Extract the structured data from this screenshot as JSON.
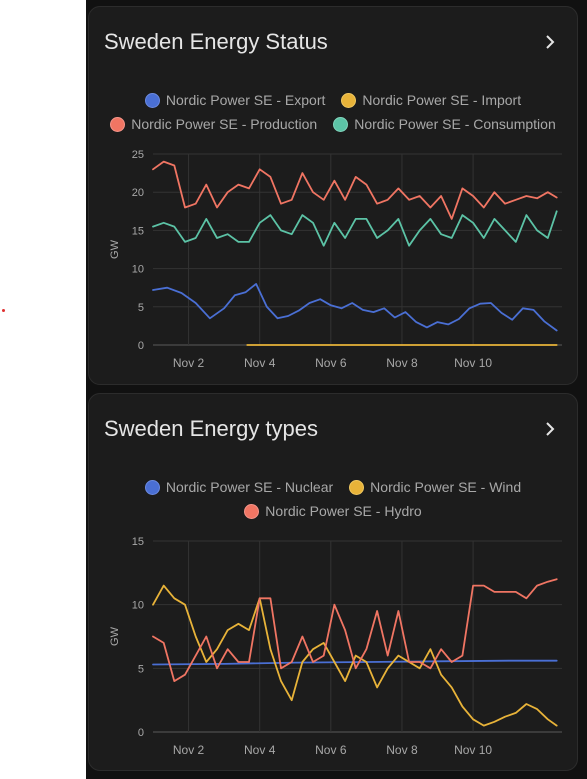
{
  "colors": {
    "blue": "#4a6fd4",
    "yellow": "#e8b339",
    "red": "#f07563",
    "teal": "#5cc3a6"
  },
  "cards": [
    {
      "title": "Sweden Energy Status",
      "chevron_icon": "chevron-right-icon",
      "legend_rows": [
        [
          {
            "label": "Nordic Power SE - Export",
            "color": "#4a6fd4"
          },
          {
            "label": "Nordic Power SE - Import",
            "color": "#e8b339"
          }
        ],
        [
          {
            "label": "Nordic Power SE - Production",
            "color": "#f07563"
          },
          {
            "label": "Nordic Power SE - Consumption",
            "color": "#5cc3a6"
          }
        ]
      ],
      "chart_data": {
        "type": "line",
        "ylabel": "GW",
        "ylim": [
          0,
          25
        ],
        "yticks": [
          "0",
          "5",
          "10",
          "15",
          "20",
          "25"
        ],
        "xlim": [
          1,
          12.5
        ],
        "xticks": [
          {
            "label": "Nov 2",
            "value": 2
          },
          {
            "label": "Nov 4",
            "value": 4
          },
          {
            "label": "Nov 6",
            "value": 6
          },
          {
            "label": "Nov 8",
            "value": 8
          },
          {
            "label": "Nov 10",
            "value": 10
          }
        ],
        "grid": true,
        "series": [
          {
            "name": "Nordic Power SE - Export",
            "color": "#4a6fd4",
            "x": [
              1,
              1.4,
              1.8,
              2.2,
              2.6,
              3.0,
              3.3,
              3.6,
              3.9,
              4.2,
              4.5,
              4.8,
              5.1,
              5.4,
              5.7,
              6.0,
              6.3,
              6.6,
              6.9,
              7.2,
              7.5,
              7.8,
              8.1,
              8.4,
              8.7,
              9.0,
              9.3,
              9.6,
              9.9,
              10.2,
              10.5,
              10.8,
              11.1,
              11.4,
              11.7,
              12.0,
              12.35
            ],
            "y": [
              7.2,
              7.5,
              6.8,
              5.5,
              3.5,
              4.8,
              6.5,
              6.9,
              8.0,
              5.0,
              3.5,
              3.8,
              4.5,
              5.5,
              6.0,
              5.2,
              4.8,
              5.5,
              4.6,
              4.3,
              4.8,
              3.6,
              4.3,
              3.0,
              2.3,
              3.0,
              2.7,
              3.4,
              4.8,
              5.4,
              5.5,
              4.2,
              3.3,
              4.8,
              4.6,
              3.1,
              1.9
            ]
          },
          {
            "name": "Nordic Power SE - Import",
            "color": "#e8b339",
            "x": [
              3.65,
              12.35
            ],
            "y": [
              0,
              0
            ]
          },
          {
            "name": "Nordic Power SE - Production",
            "color": "#f07563",
            "x": [
              1,
              1.3,
              1.6,
              1.9,
              2.2,
              2.5,
              2.8,
              3.1,
              3.4,
              3.7,
              4.0,
              4.3,
              4.6,
              4.9,
              5.2,
              5.5,
              5.8,
              6.1,
              6.4,
              6.7,
              7.0,
              7.3,
              7.6,
              7.9,
              8.2,
              8.5,
              8.8,
              9.1,
              9.4,
              9.7,
              10.0,
              10.3,
              10.6,
              10.9,
              11.2,
              11.5,
              11.8,
              12.1,
              12.35
            ],
            "y": [
              23,
              24,
              23.5,
              18,
              18.5,
              21,
              18,
              20,
              21,
              20.5,
              23,
              22,
              18.5,
              19,
              22.5,
              20,
              19,
              21.5,
              19,
              22,
              21,
              18.5,
              19,
              20.5,
              19,
              19.5,
              18,
              19.5,
              16.5,
              20.5,
              19.5,
              18,
              20,
              18.5,
              19,
              19.5,
              19.2,
              20,
              19.3
            ]
          },
          {
            "name": "Nordic Power SE - Consumption",
            "color": "#5cc3a6",
            "x": [
              1,
              1.3,
              1.6,
              1.9,
              2.2,
              2.5,
              2.8,
              3.1,
              3.4,
              3.7,
              4.0,
              4.3,
              4.6,
              4.9,
              5.2,
              5.5,
              5.8,
              6.1,
              6.4,
              6.7,
              7.0,
              7.3,
              7.6,
              7.9,
              8.2,
              8.5,
              8.8,
              9.1,
              9.4,
              9.7,
              10.0,
              10.3,
              10.6,
              10.9,
              11.2,
              11.5,
              11.8,
              12.1,
              12.35
            ],
            "y": [
              15.5,
              16,
              15.5,
              13.5,
              14,
              16.5,
              14,
              14.5,
              13.5,
              13.5,
              16,
              17,
              15,
              14.5,
              17,
              16,
              13,
              16,
              14,
              16.5,
              16.5,
              14,
              15,
              16.5,
              13,
              15,
              16.5,
              14.5,
              14,
              17,
              16,
              14,
              16.5,
              15,
              13.5,
              17,
              15,
              14,
              17.5
            ]
          }
        ]
      }
    },
    {
      "title": "Sweden Energy types",
      "chevron_icon": "chevron-right-icon",
      "legend_rows": [
        [
          {
            "label": "Nordic Power SE - Nuclear",
            "color": "#4a6fd4"
          },
          {
            "label": "Nordic Power SE - Wind",
            "color": "#e8b339"
          }
        ],
        [
          {
            "label": "Nordic Power SE - Hydro",
            "color": "#f07563"
          }
        ]
      ],
      "chart_data": {
        "type": "line",
        "ylabel": "GW",
        "ylim": [
          0,
          15
        ],
        "yticks": [
          "0",
          "5",
          "10",
          "15"
        ],
        "xlim": [
          1,
          12.5
        ],
        "xticks": [
          {
            "label": "Nov 2",
            "value": 2
          },
          {
            "label": "Nov 4",
            "value": 4
          },
          {
            "label": "Nov 6",
            "value": 6
          },
          {
            "label": "Nov 8",
            "value": 8
          },
          {
            "label": "Nov 10",
            "value": 10
          }
        ],
        "grid": true,
        "series": [
          {
            "name": "Nordic Power SE - Nuclear",
            "color": "#4a6fd4",
            "x": [
              1,
              3,
              5,
              7,
              9,
              11,
              12.35
            ],
            "y": [
              5.3,
              5.35,
              5.45,
              5.5,
              5.55,
              5.6,
              5.6
            ]
          },
          {
            "name": "Nordic Power SE - Wind",
            "color": "#e8b339",
            "x": [
              1,
              1.3,
              1.6,
              1.9,
              2.2,
              2.5,
              2.8,
              3.1,
              3.4,
              3.7,
              4.0,
              4.3,
              4.6,
              4.9,
              5.2,
              5.5,
              5.8,
              6.1,
              6.4,
              6.7,
              7.0,
              7.3,
              7.6,
              7.9,
              8.2,
              8.5,
              8.8,
              9.1,
              9.4,
              9.7,
              10.0,
              10.3,
              10.6,
              10.9,
              11.2,
              11.5,
              11.8,
              12.1,
              12.35
            ],
            "y": [
              10,
              11.5,
              10.5,
              10,
              7.5,
              5.5,
              6.5,
              8,
              8.5,
              8,
              10.5,
              6.5,
              4,
              2.5,
              5.5,
              6.5,
              7,
              5.5,
              4,
              6,
              5.5,
              3.5,
              5,
              6,
              5.5,
              5,
              6.5,
              4.5,
              3.5,
              2,
              1,
              0.5,
              0.8,
              1.2,
              1.5,
              2.2,
              1.8,
              1.0,
              0.5
            ]
          },
          {
            "name": "Nordic Power SE - Hydro",
            "color": "#f07563",
            "x": [
              1,
              1.3,
              1.6,
              1.9,
              2.2,
              2.5,
              2.8,
              3.1,
              3.4,
              3.7,
              4.0,
              4.3,
              4.6,
              4.9,
              5.2,
              5.5,
              5.8,
              6.1,
              6.4,
              6.7,
              7.0,
              7.3,
              7.6,
              7.9,
              8.2,
              8.5,
              8.8,
              9.1,
              9.4,
              9.7,
              10.0,
              10.3,
              10.6,
              10.9,
              11.2,
              11.5,
              11.8,
              12.1,
              12.35
            ],
            "y": [
              7.5,
              7,
              4,
              4.5,
              6,
              7.5,
              5,
              6.5,
              5.5,
              5.5,
              10.5,
              10.5,
              5,
              5.5,
              7.5,
              5.5,
              6,
              10,
              8,
              5,
              6.5,
              9.5,
              6,
              9.5,
              5.5,
              5.5,
              5,
              6.5,
              5.5,
              6,
              11.5,
              11.5,
              11,
              11,
              11,
              10.5,
              11.5,
              11.8,
              12
            ]
          }
        ]
      }
    }
  ]
}
